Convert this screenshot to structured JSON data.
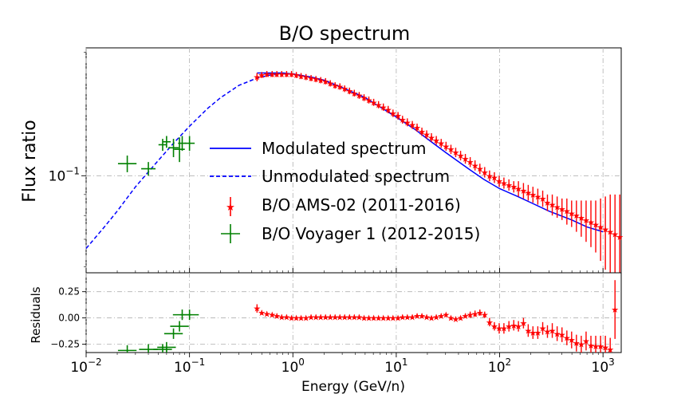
{
  "chart_data": {
    "type": "scatter",
    "title": "B/O spectrum",
    "xlabel": "Energy (GeV/n)",
    "ylabel": "Flux ratio",
    "x_scale": "log",
    "y_scale": "log",
    "xlim": [
      0.01,
      1500
    ],
    "ylim": [
      0.058,
      0.205
    ],
    "grid": true,
    "legend_placement": "center",
    "x_ticks": [
      {
        "base": "10",
        "exp": "−2",
        "value": 0.01
      },
      {
        "base": "10",
        "exp": "−1",
        "value": 0.1
      },
      {
        "base": "10",
        "exp": "0",
        "value": 1
      },
      {
        "base": "10",
        "exp": "1",
        "value": 10
      },
      {
        "base": "10",
        "exp": "2",
        "value": 100
      },
      {
        "base": "10",
        "exp": "3",
        "value": 1000
      }
    ],
    "y_ticks": [
      {
        "base": "10",
        "exp": "−1",
        "value": 0.1
      }
    ],
    "series": [
      {
        "name": "Modulated spectrum",
        "style": "solid-line",
        "color": "#0000ff",
        "points": [
          [
            0.45,
            0.178
          ],
          [
            0.6,
            0.178
          ],
          [
            0.8,
            0.178
          ],
          [
            1.0,
            0.177
          ],
          [
            1.5,
            0.174
          ],
          [
            2,
            0.171
          ],
          [
            3,
            0.164
          ],
          [
            5,
            0.155
          ],
          [
            7,
            0.147
          ],
          [
            10,
            0.139
          ],
          [
            15,
            0.13
          ],
          [
            20,
            0.123
          ],
          [
            30,
            0.114
          ],
          [
            50,
            0.104
          ],
          [
            70,
            0.098
          ],
          [
            100,
            0.093
          ],
          [
            150,
            0.089
          ],
          [
            200,
            0.086
          ],
          [
            300,
            0.082
          ],
          [
            500,
            0.078
          ],
          [
            700,
            0.075
          ],
          [
            1000,
            0.073
          ]
        ]
      },
      {
        "name": "Unmodulated spectrum",
        "style": "dashed-line",
        "color": "#0000ff",
        "points": [
          [
            0.01,
            0.0665
          ],
          [
            0.015,
            0.075
          ],
          [
            0.02,
            0.082
          ],
          [
            0.03,
            0.094
          ],
          [
            0.05,
            0.109
          ],
          [
            0.07,
            0.12
          ],
          [
            0.1,
            0.132
          ],
          [
            0.15,
            0.146
          ],
          [
            0.2,
            0.155
          ],
          [
            0.3,
            0.166
          ],
          [
            0.45,
            0.173
          ],
          [
            0.6,
            0.176
          ],
          [
            0.8,
            0.177
          ],
          [
            1.0,
            0.177
          ],
          [
            1.5,
            0.174
          ],
          [
            2,
            0.171
          ]
        ]
      },
      {
        "name": "B/O AMS-02 (2011-2016)",
        "style": "star-marker",
        "color": "#ff0000",
        "points": [
          [
            0.45,
            0.174,
            0.004
          ],
          [
            0.5,
            0.176,
            0.003
          ],
          [
            0.56,
            0.177,
            0.003
          ],
          [
            0.63,
            0.177,
            0.003
          ],
          [
            0.7,
            0.177,
            0.003
          ],
          [
            0.78,
            0.177,
            0.003
          ],
          [
            0.87,
            0.177,
            0.003
          ],
          [
            0.97,
            0.177,
            0.003
          ],
          [
            1.08,
            0.176,
            0.003
          ],
          [
            1.2,
            0.175,
            0.003
          ],
          [
            1.34,
            0.174,
            0.003
          ],
          [
            1.5,
            0.173,
            0.003
          ],
          [
            1.67,
            0.172,
            0.003
          ],
          [
            1.86,
            0.171,
            0.003
          ],
          [
            2.07,
            0.17,
            0.003
          ],
          [
            2.3,
            0.168,
            0.003
          ],
          [
            2.56,
            0.166,
            0.003
          ],
          [
            2.85,
            0.165,
            0.003
          ],
          [
            3.17,
            0.163,
            0.003
          ],
          [
            3.53,
            0.161,
            0.003
          ],
          [
            3.93,
            0.159,
            0.003
          ],
          [
            4.38,
            0.157,
            0.003
          ],
          [
            4.88,
            0.155,
            0.003
          ],
          [
            5.43,
            0.153,
            0.003
          ],
          [
            6.05,
            0.151,
            0.003
          ],
          [
            6.74,
            0.149,
            0.003
          ],
          [
            7.5,
            0.147,
            0.003
          ],
          [
            8.35,
            0.145,
            0.003
          ],
          [
            9.3,
            0.142,
            0.003
          ],
          [
            10.4,
            0.14,
            0.003
          ],
          [
            11.5,
            0.137,
            0.003
          ],
          [
            12.8,
            0.135,
            0.003
          ],
          [
            14.3,
            0.133,
            0.003
          ],
          [
            15.9,
            0.131,
            0.003
          ],
          [
            17.7,
            0.128,
            0.003
          ],
          [
            19.7,
            0.126,
            0.003
          ],
          [
            21.9,
            0.124,
            0.003
          ],
          [
            24.4,
            0.122,
            0.003
          ],
          [
            27.2,
            0.12,
            0.003
          ],
          [
            30.3,
            0.118,
            0.003
          ],
          [
            33.8,
            0.116,
            0.003
          ],
          [
            37.6,
            0.114,
            0.003
          ],
          [
            41.9,
            0.112,
            0.003
          ],
          [
            46.6,
            0.11,
            0.003
          ],
          [
            51.9,
            0.108,
            0.003
          ],
          [
            57.8,
            0.106,
            0.003
          ],
          [
            64.4,
            0.104,
            0.003
          ],
          [
            71.7,
            0.102,
            0.003
          ],
          [
            79.9,
            0.1,
            0.003
          ],
          [
            89,
            0.099,
            0.003
          ],
          [
            99,
            0.097,
            0.003
          ],
          [
            110,
            0.096,
            0.003
          ],
          [
            123,
            0.095,
            0.003
          ],
          [
            137,
            0.094,
            0.003
          ],
          [
            152,
            0.093,
            0.004
          ],
          [
            170,
            0.092,
            0.004
          ],
          [
            189,
            0.091,
            0.004
          ],
          [
            210,
            0.09,
            0.004
          ],
          [
            234,
            0.089,
            0.004
          ],
          [
            261,
            0.088,
            0.004
          ],
          [
            290,
            0.086,
            0.004
          ],
          [
            323,
            0.085,
            0.005
          ],
          [
            360,
            0.084,
            0.005
          ],
          [
            401,
            0.083,
            0.005
          ],
          [
            447,
            0.082,
            0.006
          ],
          [
            497,
            0.081,
            0.006
          ],
          [
            553,
            0.08,
            0.007
          ],
          [
            616,
            0.079,
            0.008
          ],
          [
            686,
            0.078,
            0.009
          ],
          [
            764,
            0.077,
            0.01
          ],
          [
            850,
            0.076,
            0.011
          ],
          [
            947,
            0.075,
            0.013
          ],
          [
            1054,
            0.074,
            0.015
          ],
          [
            1174,
            0.073,
            0.017
          ],
          [
            1306,
            0.072,
            0.018
          ],
          [
            1453,
            0.071,
            0.019
          ],
          [
            1617,
            0.07,
            0.02
          ],
          [
            1800,
            0.069,
            0.021
          ]
        ]
      },
      {
        "name": "B/O Voyager 1 (2012-2015)",
        "style": "cross-marker",
        "color": "#008000",
        "points": [
          [
            0.025,
            0.107,
            0.008,
            0.005
          ],
          [
            0.04,
            0.104,
            0.006,
            0.004
          ],
          [
            0.055,
            0.119,
            0.004,
            0.004
          ],
          [
            0.06,
            0.121,
            0.004,
            0.004
          ],
          [
            0.07,
            0.117,
            0.005,
            0.006
          ],
          [
            0.08,
            0.116,
            0.005,
            0.008
          ],
          [
            0.085,
            0.12,
            0.004,
            0.005
          ],
          [
            0.1,
            0.12,
            0.005,
            0.005
          ]
        ]
      }
    ],
    "residuals": {
      "ylabel": "Residuals",
      "ylim": [
        -0.33,
        0.43
      ],
      "y_ticks": [
        "0.25",
        "0.00",
        "−0.25"
      ],
      "y_tick_values": [
        0.25,
        0.0,
        -0.25
      ],
      "ams_points": [
        [
          0.45,
          0.09,
          0.04
        ],
        [
          0.5,
          0.05,
          0.02
        ],
        [
          0.56,
          0.04,
          0.02
        ],
        [
          0.63,
          0.03,
          0.02
        ],
        [
          0.7,
          0.02,
          0.02
        ],
        [
          0.78,
          0.01,
          0.02
        ],
        [
          0.87,
          0.01,
          0.02
        ],
        [
          0.97,
          0.0,
          0.02
        ],
        [
          1.08,
          0.0,
          0.02
        ],
        [
          1.2,
          0.0,
          0.02
        ],
        [
          1.34,
          0.0,
          0.02
        ],
        [
          1.5,
          0.01,
          0.02
        ],
        [
          1.67,
          0.01,
          0.02
        ],
        [
          1.86,
          0.01,
          0.02
        ],
        [
          2.07,
          0.01,
          0.02
        ],
        [
          2.3,
          0.01,
          0.02
        ],
        [
          2.56,
          0.01,
          0.02
        ],
        [
          2.85,
          0.01,
          0.02
        ],
        [
          3.17,
          0.01,
          0.02
        ],
        [
          3.53,
          0.01,
          0.02
        ],
        [
          3.93,
          0.01,
          0.02
        ],
        [
          4.38,
          0.01,
          0.02
        ],
        [
          4.88,
          0.0,
          0.02
        ],
        [
          5.43,
          0.0,
          0.02
        ],
        [
          6.05,
          0.0,
          0.02
        ],
        [
          6.74,
          0.0,
          0.02
        ],
        [
          7.5,
          0.0,
          0.02
        ],
        [
          8.35,
          0.0,
          0.02
        ],
        [
          9.3,
          0.0,
          0.02
        ],
        [
          10.4,
          0.0,
          0.02
        ],
        [
          11.5,
          0.01,
          0.02
        ],
        [
          12.8,
          0.01,
          0.02
        ],
        [
          14.3,
          0.01,
          0.02
        ],
        [
          15.9,
          0.02,
          0.02
        ],
        [
          17.7,
          0.02,
          0.02
        ],
        [
          19.7,
          0.01,
          0.02
        ],
        [
          21.9,
          0.0,
          0.02
        ],
        [
          24.4,
          0.01,
          0.02
        ],
        [
          27.2,
          0.02,
          0.02
        ],
        [
          30.3,
          0.03,
          0.02
        ],
        [
          33.8,
          0.0,
          0.02
        ],
        [
          37.6,
          -0.01,
          0.02
        ],
        [
          41.9,
          0.0,
          0.02
        ],
        [
          46.6,
          0.02,
          0.02
        ],
        [
          51.9,
          0.03,
          0.03
        ],
        [
          57.8,
          0.04,
          0.03
        ],
        [
          64.4,
          0.05,
          0.03
        ],
        [
          71.7,
          0.03,
          0.03
        ],
        [
          79.9,
          -0.04,
          0.04
        ],
        [
          89,
          -0.08,
          0.04
        ],
        [
          99,
          -0.1,
          0.05
        ],
        [
          110,
          -0.1,
          0.05
        ],
        [
          123,
          -0.08,
          0.05
        ],
        [
          137,
          -0.07,
          0.05
        ],
        [
          152,
          -0.08,
          0.05
        ],
        [
          170,
          -0.05,
          0.05
        ],
        [
          189,
          -0.12,
          0.06
        ],
        [
          210,
          -0.14,
          0.06
        ],
        [
          234,
          -0.14,
          0.06
        ],
        [
          261,
          -0.1,
          0.06
        ],
        [
          290,
          -0.13,
          0.06
        ],
        [
          323,
          -0.12,
          0.07
        ],
        [
          360,
          -0.15,
          0.07
        ],
        [
          401,
          -0.16,
          0.07
        ],
        [
          447,
          -0.19,
          0.07
        ],
        [
          497,
          -0.21,
          0.08
        ],
        [
          553,
          -0.24,
          0.08
        ],
        [
          616,
          -0.25,
          0.08
        ],
        [
          686,
          -0.22,
          0.09
        ],
        [
          764,
          -0.26,
          0.09
        ],
        [
          850,
          -0.27,
          0.1
        ],
        [
          947,
          -0.27,
          0.1
        ],
        [
          1054,
          -0.28,
          0.11
        ],
        [
          1174,
          -0.3,
          0.11
        ],
        [
          1306,
          0.08,
          0.28
        ]
      ],
      "voyager_points": [
        [
          0.025,
          -0.31,
          0.05,
          0.05
        ],
        [
          0.04,
          -0.3,
          0.05,
          0.05
        ],
        [
          0.055,
          -0.3,
          0.05,
          0.05
        ],
        [
          0.06,
          -0.28,
          0.05,
          0.05
        ],
        [
          0.07,
          -0.15,
          0.04,
          0.05
        ],
        [
          0.08,
          -0.08,
          0.04,
          0.05
        ],
        [
          0.085,
          0.03,
          0.04,
          0.05
        ],
        [
          0.1,
          0.03,
          0.04,
          0.05
        ]
      ]
    }
  }
}
